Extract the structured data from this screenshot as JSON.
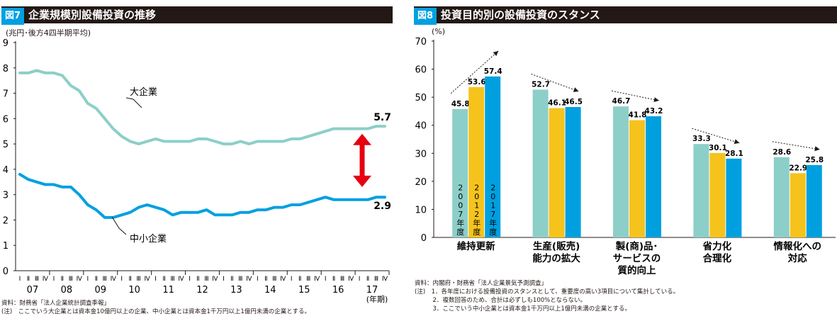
{
  "left": {
    "fig_number": "図7",
    "title": "企業規模別設備投資の推移",
    "unit": "(兆円･後方4四半期平均)",
    "x_unit": "(年期)",
    "source": "資料：財務省「法人企業統計調査季報」",
    "note": "(注)　ここでいう大企業とは資本金10億円以上の企業、中小企業とは資本金1千万円以上1億円未満の企業とする。",
    "colors": {
      "large": "#8ccfc8",
      "small": "#00a0e0",
      "arrow": "#e60012"
    }
  },
  "right": {
    "fig_number": "図8",
    "title": "投資目的別の設備投資のスタンス",
    "unit": "(%)",
    "source": "資料：内閣府・財務省「法人企業景気予測調査」",
    "notes": [
      "(注)　1．各年度における設備投資のスタンスとして、重要度の高い3項目について集計している。",
      "　　　2．複数回答のため、合計は必ずしも100%とならない。",
      "　　　3．ここでいう中小企業とは資本金1千万円以上1億円未満の企業とする。"
    ],
    "colors": {
      "2007": "#8ccfc8",
      "2012": "#f5c31c",
      "2017": "#00a0e0"
    }
  },
  "chart_data": [
    {
      "type": "line",
      "quarter_labels": [
        "Ⅰ",
        "Ⅱ",
        "Ⅲ",
        "Ⅳ"
      ],
      "year_labels": [
        "07",
        "08",
        "09",
        "10",
        "11",
        "12",
        "13",
        "14",
        "15",
        "16",
        "17"
      ],
      "ylim": [
        0,
        9
      ],
      "yticks": [
        "0",
        "1",
        "2",
        "3",
        "4",
        "5",
        "6",
        "7",
        "8",
        "9"
      ],
      "series": [
        {
          "name": "大企業",
          "end_label": "5.7",
          "values": [
            7.8,
            7.8,
            7.9,
            7.8,
            7.8,
            7.7,
            7.3,
            7.1,
            6.6,
            6.4,
            6.0,
            5.6,
            5.3,
            5.1,
            5.0,
            5.1,
            5.2,
            5.1,
            5.1,
            5.1,
            5.1,
            5.2,
            5.2,
            5.1,
            5.0,
            5.0,
            5.1,
            5.0,
            5.1,
            5.1,
            5.1,
            5.1,
            5.2,
            5.2,
            5.3,
            5.4,
            5.5,
            5.6,
            5.6,
            5.6,
            5.6,
            5.6,
            5.7,
            5.7
          ]
        },
        {
          "name": "中小企業",
          "end_label": "2.9",
          "values": [
            3.8,
            3.6,
            3.5,
            3.4,
            3.4,
            3.3,
            3.3,
            3.0,
            2.6,
            2.4,
            2.1,
            2.1,
            2.2,
            2.3,
            2.5,
            2.6,
            2.5,
            2.4,
            2.2,
            2.3,
            2.3,
            2.3,
            2.4,
            2.2,
            2.2,
            2.2,
            2.3,
            2.3,
            2.4,
            2.4,
            2.5,
            2.5,
            2.6,
            2.6,
            2.7,
            2.8,
            2.9,
            2.8,
            2.8,
            2.8,
            2.8,
            2.8,
            2.9,
            2.9
          ]
        }
      ]
    },
    {
      "type": "bar",
      "categories": [
        "維持更新",
        "生産(販売)\n能力の拡大",
        "製(商)品･\nサービスの\n質的向上",
        "省力化\n合理化",
        "情報化への\n対応"
      ],
      "ylim": [
        0,
        70
      ],
      "yticks": [
        "0",
        "10",
        "20",
        "30",
        "40",
        "50",
        "60",
        "70"
      ],
      "series": [
        {
          "name": "2007年度",
          "values": [
            45.8,
            52.7,
            46.7,
            33.3,
            28.6
          ]
        },
        {
          "name": "2012年度",
          "values": [
            53.6,
            46.1,
            41.8,
            30.1,
            22.9
          ]
        },
        {
          "name": "2017年度",
          "values": [
            57.4,
            46.5,
            43.2,
            28.1,
            25.8
          ]
        }
      ]
    }
  ]
}
